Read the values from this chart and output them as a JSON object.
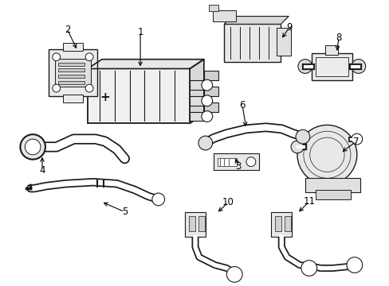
{
  "background_color": "#ffffff",
  "line_color": "#1a1a1a",
  "line_width": 1.0,
  "label_fontsize": 8.5,
  "fig_width": 4.89,
  "fig_height": 3.6
}
